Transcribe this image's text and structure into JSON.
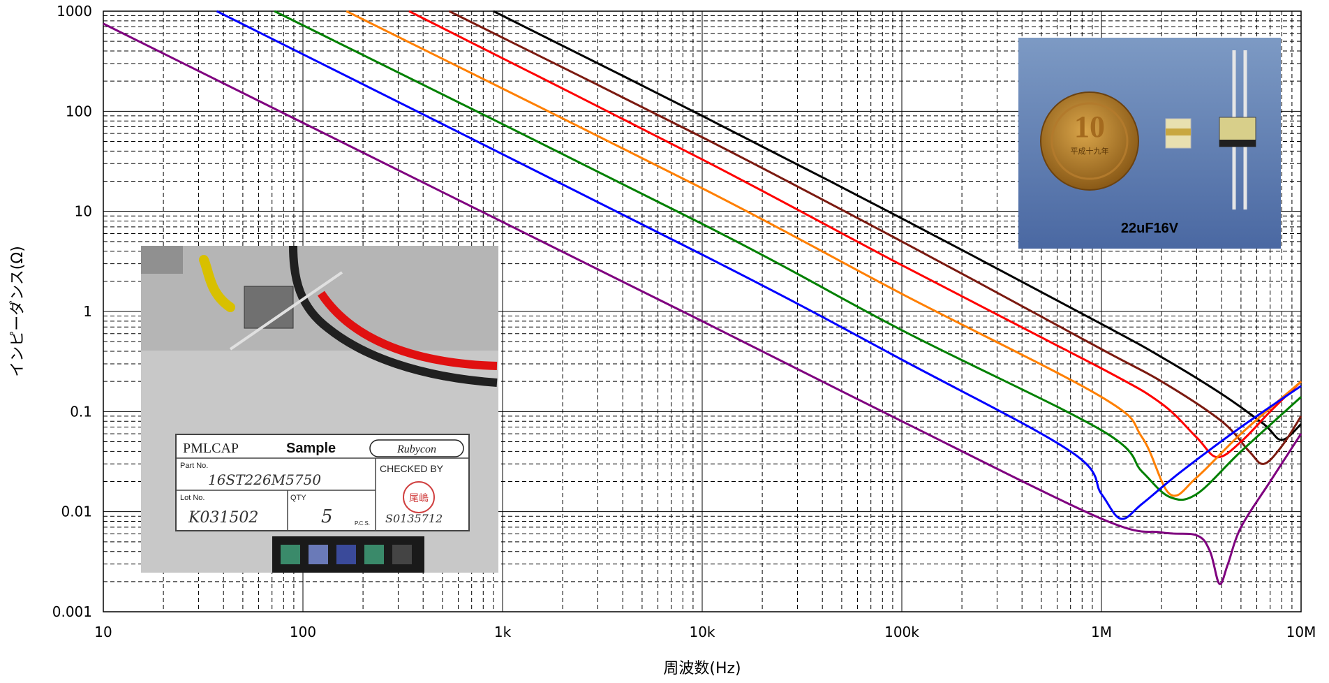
{
  "chart_data": {
    "type": "line",
    "title": "",
    "xlabel": "周波数(Hz)",
    "ylabel": "インピーダンス(Ω)",
    "xscale": "log",
    "yscale": "log",
    "xlim": [
      10,
      10000000
    ],
    "ylim": [
      0.001,
      1000
    ],
    "grid": true,
    "x_ticks": [
      {
        "v": 10,
        "label": "10"
      },
      {
        "v": 100,
        "label": "100"
      },
      {
        "v": 1000,
        "label": "1k"
      },
      {
        "v": 10000,
        "label": "10k"
      },
      {
        "v": 100000,
        "label": "100k"
      },
      {
        "v": 1000000,
        "label": "1M"
      },
      {
        "v": 10000000,
        "label": "10M"
      }
    ],
    "y_ticks": [
      {
        "v": 0.001,
        "label": "0.001"
      },
      {
        "v": 0.01,
        "label": "0.01"
      },
      {
        "v": 0.1,
        "label": "0.1"
      },
      {
        "v": 1,
        "label": "1"
      },
      {
        "v": 10,
        "label": "10"
      },
      {
        "v": 100,
        "label": "100"
      },
      {
        "v": 1000,
        "label": "1000"
      }
    ],
    "series": [
      {
        "color": "#000000",
        "x": [
          900,
          10000,
          100000,
          1000000,
          2000000,
          4000000,
          6500000,
          8000000,
          10000000
        ],
        "y": [
          1000,
          90,
          8.5,
          0.75,
          0.35,
          0.15,
          0.075,
          0.052,
          0.075
        ]
      },
      {
        "color": "#7b1a10",
        "x": [
          540,
          10000,
          100000,
          1000000,
          2000000,
          4000000,
          5500000,
          6500000,
          8000000,
          10000000
        ],
        "y": [
          1000,
          55,
          5,
          0.42,
          0.2,
          0.08,
          0.04,
          0.03,
          0.045,
          0.09
        ]
      },
      {
        "color": "#ff0000",
        "x": [
          340,
          10000,
          100000,
          1000000,
          2000000,
          3000000,
          3800000,
          5000000,
          7000000,
          10000000
        ],
        "y": [
          1000,
          33,
          2.9,
          0.27,
          0.12,
          0.055,
          0.035,
          0.05,
          0.1,
          0.2
        ]
      },
      {
        "color": "#ff7f00",
        "x": [
          165,
          10000,
          100000,
          1000000,
          1600000,
          2200000,
          3000000,
          5000000,
          10000000
        ],
        "y": [
          1000,
          17,
          1.5,
          0.14,
          0.055,
          0.015,
          0.022,
          0.06,
          0.2
        ]
      },
      {
        "color": "#008000",
        "x": [
          72,
          10000,
          100000,
          1000000,
          1600000,
          2200000,
          3000000,
          5000000,
          10000000
        ],
        "y": [
          1000,
          7.5,
          0.65,
          0.065,
          0.025,
          0.014,
          0.015,
          0.04,
          0.14
        ]
      },
      {
        "color": "#0000ff",
        "x": [
          37,
          10000,
          100000,
          700000,
          1000000,
          1250000,
          1600000,
          2500000,
          5000000,
          10000000
        ],
        "y": [
          1000,
          3.7,
          0.33,
          0.04,
          0.015,
          0.0085,
          0.012,
          0.025,
          0.07,
          0.18
        ]
      },
      {
        "color": "#7f007f",
        "x": [
          10,
          10000,
          100000,
          1000000,
          2000000,
          3000000,
          3500000,
          3900000,
          4300000,
          5000000,
          7000000,
          10000000
        ],
        "y": [
          750,
          0.8,
          0.08,
          0.0085,
          0.0062,
          0.0058,
          0.004,
          0.0019,
          0.003,
          0.007,
          0.02,
          0.06
        ]
      }
    ]
  },
  "photos": {
    "top_right": {
      "caption": "22uF16V",
      "coin_numeral": "10",
      "coin_text": "平成十九年"
    },
    "bottom_left": {
      "label_title": "PMLCAP",
      "label_sample": "Sample",
      "label_brand": "Rubycon",
      "part_no_label": "Part No.",
      "part_no_value": "16ST226M5750",
      "checked_by": "CHECKED BY",
      "stamp_text": "尾嶋",
      "lot_no_label": "Lot No.",
      "lot_no_value": "K031502",
      "qty_label": "QTY",
      "qty_value": "5",
      "pcs": "P.C.S.",
      "serial": "S0135712"
    }
  }
}
